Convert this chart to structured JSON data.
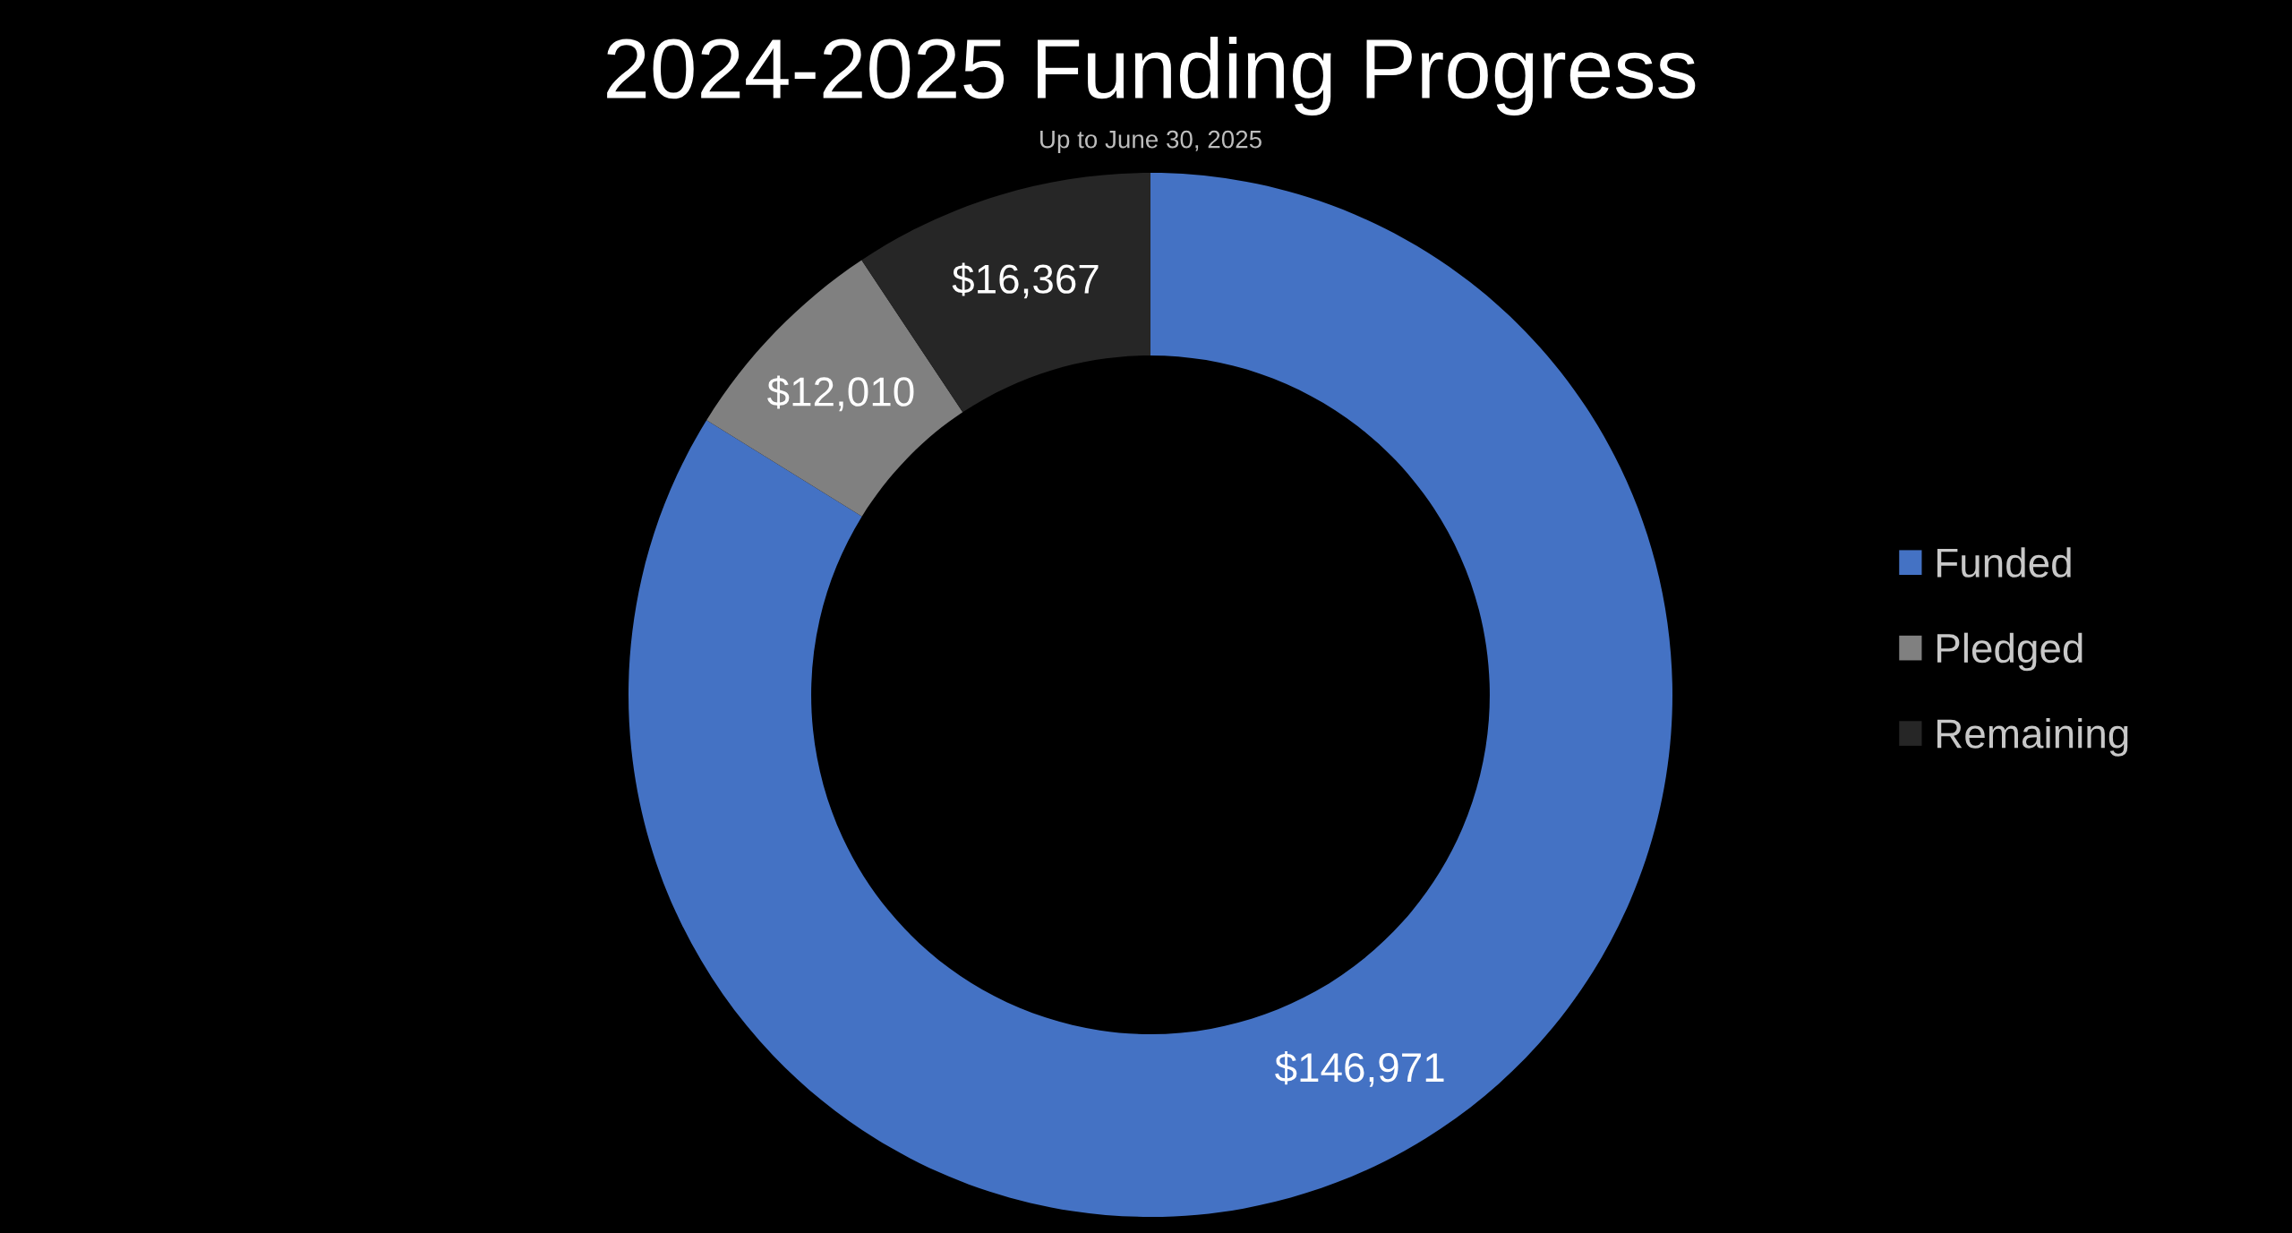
{
  "chart_data": {
    "type": "donut",
    "title": "2024-2025 Funding Progress",
    "subtitle": "Up to June 30, 2025",
    "categories": [
      "Funded",
      "Pledged",
      "Remaining"
    ],
    "values": [
      146971,
      12010,
      16367
    ],
    "colors": [
      "#4472c4",
      "#808080",
      "#262626"
    ],
    "value_labels": [
      "$146,971",
      "$12,010",
      "$16,367"
    ],
    "legend": "right"
  }
}
